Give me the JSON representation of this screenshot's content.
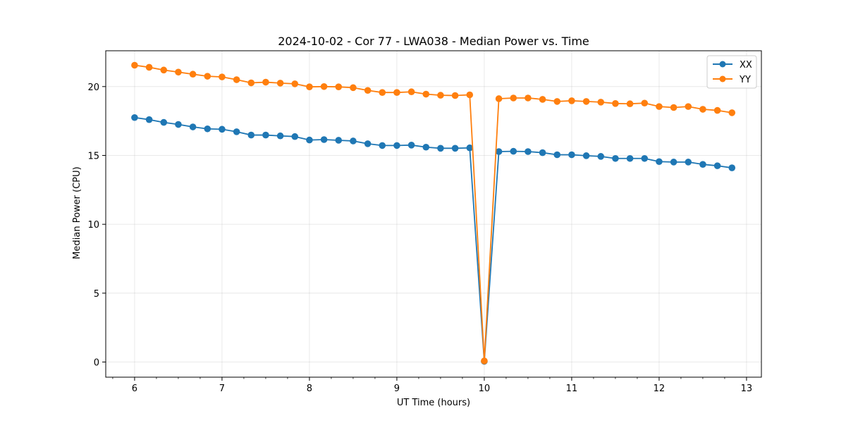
{
  "chart_data": {
    "type": "line",
    "title": "2024-10-02 - Cor 77 - LWA038 - Median Power vs. Time",
    "xlabel": "UT Time (hours)",
    "ylabel": "Median Power (CPU)",
    "xlim": [
      5.67,
      13.17
    ],
    "ylim": [
      -1.1,
      22.6
    ],
    "xticks": [
      6,
      7,
      8,
      9,
      10,
      11,
      12,
      13
    ],
    "xticks_minor_step": 0.25,
    "yticks": [
      0,
      5,
      10,
      15,
      20
    ],
    "grid": true,
    "legend_position": "top-right",
    "x": [
      6.0,
      6.1667,
      6.3333,
      6.5,
      6.6667,
      6.8333,
      7.0,
      7.1667,
      7.3333,
      7.5,
      7.6667,
      7.8333,
      8.0,
      8.1667,
      8.3333,
      8.5,
      8.6667,
      8.8333,
      9.0,
      9.1667,
      9.3333,
      9.5,
      9.6667,
      9.8333,
      10.0,
      10.1667,
      10.3333,
      10.5,
      10.6667,
      10.8333,
      11.0,
      11.1667,
      11.3333,
      11.5,
      11.6667,
      11.8333,
      12.0,
      12.1667,
      12.3333,
      12.5,
      12.6667,
      12.8333
    ],
    "series": [
      {
        "name": "XX",
        "color": "#1f77b4",
        "values": [
          17.75,
          17.6,
          17.4,
          17.25,
          17.07,
          16.93,
          16.9,
          16.72,
          16.48,
          16.48,
          16.42,
          16.37,
          16.12,
          16.15,
          16.1,
          16.05,
          15.85,
          15.72,
          15.72,
          15.75,
          15.6,
          15.52,
          15.52,
          15.55,
          0.05,
          15.28,
          15.3,
          15.28,
          15.2,
          15.05,
          15.05,
          14.98,
          14.93,
          14.78,
          14.78,
          14.78,
          14.55,
          14.52,
          14.52,
          14.35,
          14.25,
          14.1
        ]
      },
      {
        "name": "YY",
        "color": "#ff7f0e",
        "values": [
          21.55,
          21.4,
          21.2,
          21.05,
          20.9,
          20.75,
          20.7,
          20.5,
          20.27,
          20.32,
          20.25,
          20.2,
          19.98,
          20.0,
          19.98,
          19.92,
          19.72,
          19.57,
          19.57,
          19.62,
          19.45,
          19.37,
          19.35,
          19.4,
          0.08,
          19.12,
          19.17,
          19.17,
          19.07,
          18.92,
          18.97,
          18.92,
          18.87,
          18.77,
          18.75,
          18.8,
          18.55,
          18.48,
          18.55,
          18.35,
          18.27,
          18.1
        ]
      }
    ]
  }
}
